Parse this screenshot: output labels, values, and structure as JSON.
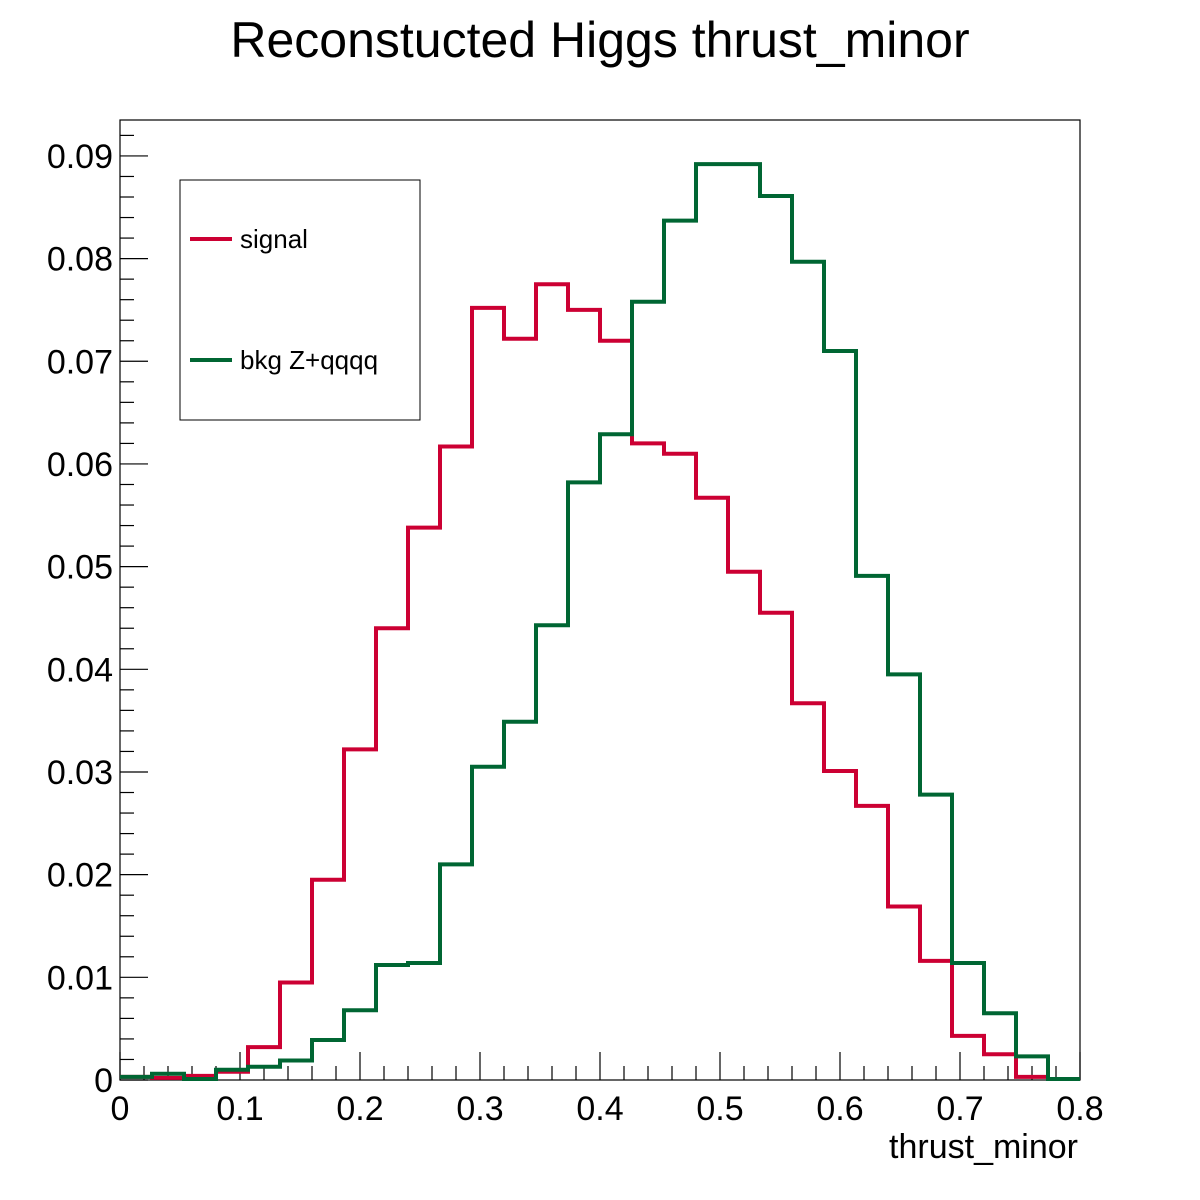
{
  "chart_data": {
    "type": "line",
    "style": "step-histogram",
    "title": "Reconstucted Higgs thrust_minor",
    "xlabel": "thrust_minor",
    "ylabel": "",
    "xlim": [
      0,
      0.8
    ],
    "ylim": [
      0,
      0.0935
    ],
    "x_ticks": [
      "0",
      "0.1",
      "0.2",
      "0.3",
      "0.4",
      "0.5",
      "0.6",
      "0.7",
      "0.8"
    ],
    "y_ticks": [
      "0",
      "0.01",
      "0.02",
      "0.03",
      "0.04",
      "0.05",
      "0.06",
      "0.07",
      "0.08",
      "0.09"
    ],
    "bin_edges": [
      0,
      0.0267,
      0.0533,
      0.08,
      0.1067,
      0.1333,
      0.16,
      0.1867,
      0.2133,
      0.24,
      0.2667,
      0.2933,
      0.32,
      0.3467,
      0.3733,
      0.4,
      0.4267,
      0.4533,
      0.48,
      0.5067,
      0.5333,
      0.56,
      0.5867,
      0.6133,
      0.64,
      0.6667,
      0.6933,
      0.72,
      0.7467,
      0.7733,
      0.8
    ],
    "grid": false,
    "legend_position": "top-left",
    "series": [
      {
        "name": "signal",
        "color": "#cc0033",
        "values": [
          0.0003,
          0.0002,
          0.0004,
          0.0008,
          0.0032,
          0.0095,
          0.0195,
          0.0322,
          0.044,
          0.0538,
          0.0617,
          0.0752,
          0.0722,
          0.0775,
          0.075,
          0.072,
          0.062,
          0.061,
          0.0567,
          0.0495,
          0.0455,
          0.0367,
          0.0301,
          0.0267,
          0.0169,
          0.0116,
          0.0043,
          0.0025,
          0.0003,
          0.0001
        ]
      },
      {
        "name": "bkg Z+qqqq",
        "color": "#006633",
        "values": [
          0.0003,
          0.0006,
          0.0001,
          0.001,
          0.0013,
          0.0019,
          0.0039,
          0.0068,
          0.0112,
          0.0114,
          0.021,
          0.0305,
          0.0349,
          0.0443,
          0.0582,
          0.0629,
          0.0758,
          0.0837,
          0.0892,
          0.0892,
          0.0861,
          0.0797,
          0.071,
          0.0491,
          0.0395,
          0.0278,
          0.0114,
          0.0065,
          0.0023,
          0.0001
        ]
      }
    ]
  }
}
